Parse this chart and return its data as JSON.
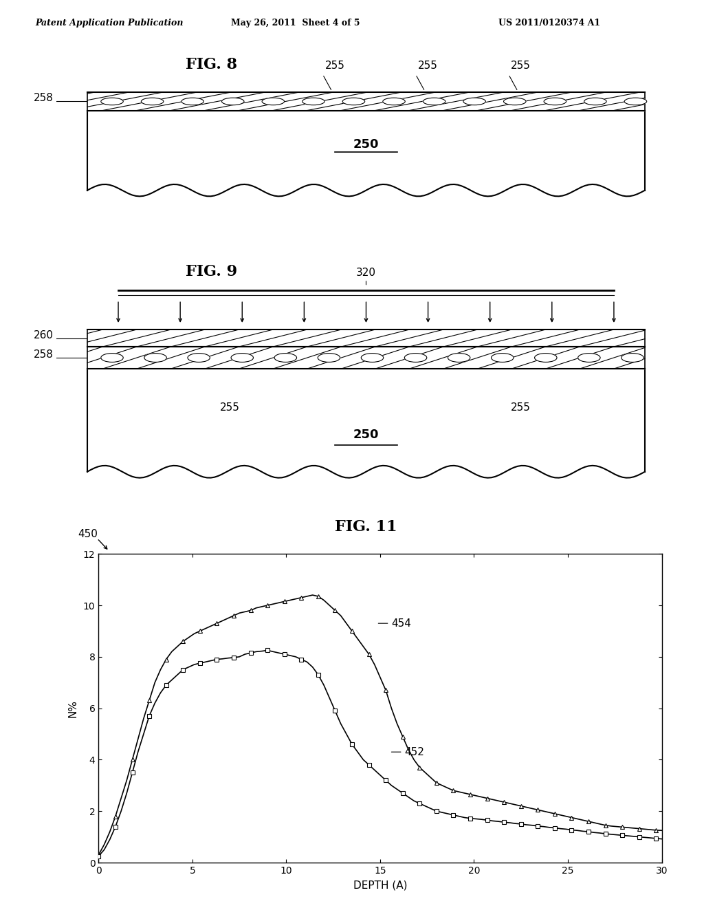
{
  "header_left": "Patent Application Publication",
  "header_mid": "May 26, 2011  Sheet 4 of 5",
  "header_right": "US 2011/0120374 A1",
  "fig8_title": "FIG. 8",
  "fig9_title": "FIG. 9",
  "fig11_title": "FIG. 11",
  "label_258": "258",
  "label_250_fig8": "250",
  "label_255_fig8": [
    "255",
    "255",
    "255"
  ],
  "label_320": "320",
  "label_260": "260",
  "label_258_fig9": "258",
  "label_255_fig9_left": "255",
  "label_255_fig9_right": "255",
  "label_250_fig9": "250",
  "label_450": "450",
  "label_454": "454",
  "label_452": "452",
  "xlabel": "DEPTH (A)",
  "ylabel": "N%",
  "xlim": [
    0,
    30
  ],
  "ylim": [
    0,
    12
  ],
  "xticks": [
    0,
    5,
    10,
    15,
    20,
    25,
    30
  ],
  "yticks": [
    0,
    2,
    4,
    6,
    8,
    10,
    12
  ],
  "curve454_x": [
    0.0,
    0.3,
    0.6,
    0.9,
    1.2,
    1.5,
    1.8,
    2.1,
    2.4,
    2.7,
    3.0,
    3.3,
    3.6,
    3.9,
    4.2,
    4.5,
    4.8,
    5.1,
    5.4,
    5.7,
    6.0,
    6.3,
    6.6,
    6.9,
    7.2,
    7.5,
    7.8,
    8.1,
    8.4,
    8.7,
    9.0,
    9.3,
    9.6,
    9.9,
    10.2,
    10.5,
    10.8,
    11.1,
    11.4,
    11.7,
    12.0,
    12.3,
    12.6,
    12.9,
    13.2,
    13.5,
    13.8,
    14.1,
    14.4,
    14.7,
    15.0,
    15.3,
    15.6,
    15.9,
    16.2,
    16.5,
    16.8,
    17.1,
    17.4,
    17.7,
    18.0,
    18.3,
    18.6,
    18.9,
    19.2,
    19.5,
    19.8,
    20.1,
    20.4,
    20.7,
    21.0,
    21.3,
    21.6,
    21.9,
    22.2,
    22.5,
    22.8,
    23.1,
    23.4,
    23.7,
    24.0,
    24.3,
    24.6,
    24.9,
    25.2,
    25.5,
    25.8,
    26.1,
    26.4,
    26.7,
    27.0,
    27.3,
    27.6,
    27.9,
    28.2,
    28.5,
    28.8,
    29.1,
    29.4,
    29.7,
    30.0
  ],
  "curve454_y": [
    0.3,
    0.7,
    1.2,
    1.8,
    2.5,
    3.2,
    4.0,
    4.8,
    5.6,
    6.3,
    7.0,
    7.5,
    7.9,
    8.2,
    8.4,
    8.6,
    8.75,
    8.9,
    9.0,
    9.1,
    9.2,
    9.3,
    9.4,
    9.5,
    9.6,
    9.7,
    9.75,
    9.8,
    9.9,
    9.95,
    10.0,
    10.05,
    10.1,
    10.15,
    10.2,
    10.25,
    10.3,
    10.35,
    10.4,
    10.35,
    10.2,
    10.0,
    9.8,
    9.6,
    9.3,
    9.0,
    8.7,
    8.4,
    8.1,
    7.7,
    7.2,
    6.7,
    6.0,
    5.4,
    4.9,
    4.4,
    4.0,
    3.7,
    3.5,
    3.3,
    3.1,
    3.0,
    2.9,
    2.8,
    2.75,
    2.7,
    2.65,
    2.6,
    2.55,
    2.5,
    2.45,
    2.4,
    2.35,
    2.3,
    2.25,
    2.2,
    2.15,
    2.1,
    2.05,
    2.0,
    1.95,
    1.9,
    1.85,
    1.8,
    1.75,
    1.7,
    1.65,
    1.6,
    1.55,
    1.5,
    1.45,
    1.42,
    1.4,
    1.38,
    1.36,
    1.34,
    1.32,
    1.3,
    1.28,
    1.26,
    1.25
  ],
  "curve452_x": [
    0.0,
    0.3,
    0.6,
    0.9,
    1.2,
    1.5,
    1.8,
    2.1,
    2.4,
    2.7,
    3.0,
    3.3,
    3.6,
    3.9,
    4.2,
    4.5,
    4.8,
    5.1,
    5.4,
    5.7,
    6.0,
    6.3,
    6.6,
    6.9,
    7.2,
    7.5,
    7.8,
    8.1,
    8.4,
    8.7,
    9.0,
    9.3,
    9.6,
    9.9,
    10.2,
    10.5,
    10.8,
    11.1,
    11.4,
    11.7,
    12.0,
    12.3,
    12.6,
    12.9,
    13.2,
    13.5,
    13.8,
    14.1,
    14.4,
    14.7,
    15.0,
    15.3,
    15.6,
    15.9,
    16.2,
    16.5,
    16.8,
    17.1,
    17.4,
    17.7,
    18.0,
    18.3,
    18.6,
    18.9,
    19.2,
    19.5,
    19.8,
    20.1,
    20.4,
    20.7,
    21.0,
    21.3,
    21.6,
    21.9,
    22.2,
    22.5,
    22.8,
    23.1,
    23.4,
    23.7,
    24.0,
    24.3,
    24.6,
    24.9,
    25.2,
    25.5,
    25.8,
    26.1,
    26.4,
    26.7,
    27.0,
    27.3,
    27.6,
    27.9,
    28.2,
    28.5,
    28.8,
    29.1,
    29.4,
    29.7,
    30.0
  ],
  "curve452_y": [
    0.25,
    0.5,
    0.9,
    1.4,
    2.0,
    2.7,
    3.5,
    4.3,
    5.0,
    5.7,
    6.2,
    6.6,
    6.9,
    7.1,
    7.3,
    7.5,
    7.6,
    7.7,
    7.75,
    7.8,
    7.85,
    7.9,
    7.92,
    7.95,
    7.97,
    8.0,
    8.1,
    8.15,
    8.2,
    8.22,
    8.25,
    8.2,
    8.15,
    8.1,
    8.05,
    8.0,
    7.9,
    7.8,
    7.6,
    7.3,
    6.9,
    6.4,
    5.9,
    5.4,
    5.0,
    4.6,
    4.3,
    4.0,
    3.8,
    3.6,
    3.4,
    3.2,
    3.0,
    2.85,
    2.7,
    2.55,
    2.4,
    2.3,
    2.2,
    2.1,
    2.0,
    1.95,
    1.9,
    1.85,
    1.8,
    1.75,
    1.72,
    1.7,
    1.68,
    1.65,
    1.62,
    1.6,
    1.57,
    1.55,
    1.52,
    1.5,
    1.47,
    1.45,
    1.42,
    1.4,
    1.37,
    1.35,
    1.32,
    1.3,
    1.27,
    1.25,
    1.22,
    1.2,
    1.17,
    1.15,
    1.12,
    1.1,
    1.08,
    1.06,
    1.04,
    1.02,
    1.0,
    0.98,
    0.96,
    0.94,
    0.92
  ],
  "background_color": "#ffffff",
  "line_color": "#000000"
}
